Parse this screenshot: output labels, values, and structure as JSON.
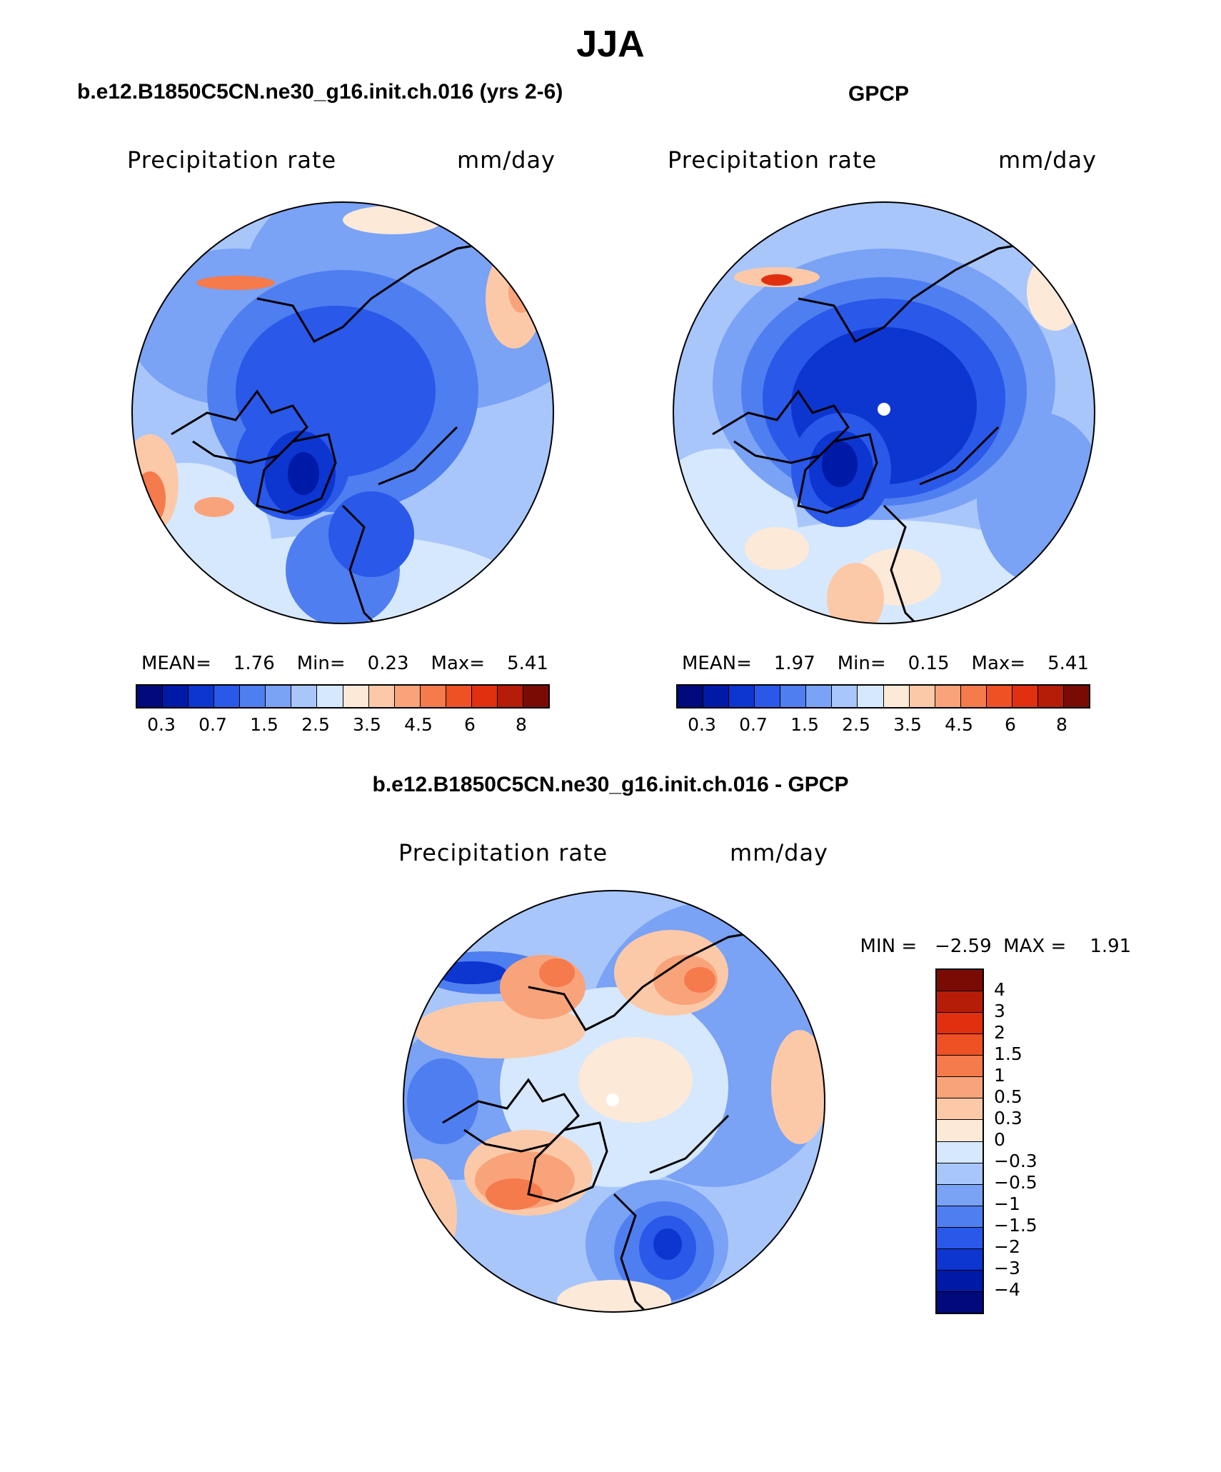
{
  "figure": {
    "title": "JJA",
    "panels": [
      {
        "case_title": "b.e12.B1850C5CN.ne30_g16.init.ch.016 (yrs 2-6)",
        "variable": "Precipitation rate",
        "units": "mm/day",
        "stats": {
          "mean_label": "MEAN=",
          "mean": "1.76",
          "min_label": "Min=",
          "min": "0.23",
          "max_label": "Max=",
          "max": "5.41"
        }
      },
      {
        "case_title": "GPCP",
        "variable": "Precipitation rate",
        "units": "mm/day",
        "stats": {
          "mean_label": "MEAN=",
          "mean": "1.97",
          "min_label": "Min=",
          "min": "0.15",
          "max_label": "Max=",
          "max": "5.41"
        }
      },
      {
        "case_title": "b.e12.B1850C5CN.ne30_g16.init.ch.016 - GPCP",
        "variable": "Precipitation rate",
        "units": "mm/day",
        "stats": {
          "min_label": "MIN =",
          "min": "−2.59",
          "max_label": "MAX =",
          "max": "1.91"
        }
      }
    ]
  },
  "colorbars": {
    "abs_ticks": [
      "0.3",
      "0.7",
      "1.5",
      "2.5",
      "3.5",
      "4.5",
      "6",
      "8"
    ],
    "abs_colors": [
      "#000a7a",
      "#001aa8",
      "#0d35d0",
      "#2a58e8",
      "#4f7ef0",
      "#7aa2f5",
      "#a8c6fa",
      "#d6e8fd",
      "#fde9d8",
      "#fcc9a8",
      "#f9a37a",
      "#f57a4c",
      "#ee5124",
      "#e03010",
      "#b51d08",
      "#7a0b04"
    ],
    "diff_ticks": [
      "4",
      "3",
      "2",
      "1.5",
      "1",
      "0.5",
      "0.3",
      "0",
      "−0.3",
      "−0.5",
      "−1",
      "−1.5",
      "−2",
      "−3",
      "−4"
    ],
    "diff_colors": [
      "#7a0b04",
      "#b51d08",
      "#e03010",
      "#ee5124",
      "#f57a4c",
      "#f9a37a",
      "#fcc9a8",
      "#fde9d8",
      "#d6e8fd",
      "#a8c6fa",
      "#7aa2f5",
      "#4f7ef0",
      "#2a58e8",
      "#0d35d0",
      "#001aa8",
      "#000a7a"
    ]
  }
}
